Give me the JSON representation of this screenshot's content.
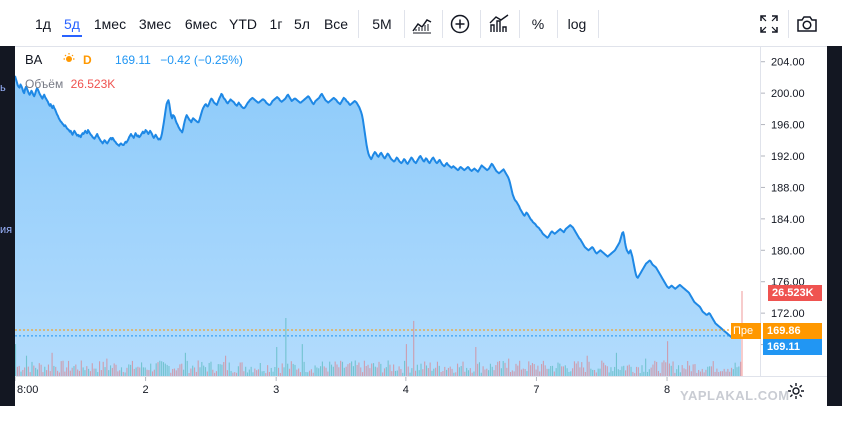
{
  "toolbar": {
    "ranges": [
      "1д",
      "5д",
      "1мес",
      "3мес",
      "6мес",
      "YTD",
      "1г",
      "5л",
      "Все"
    ],
    "active_range": "5д",
    "interval": "5M",
    "percent_label": "%",
    "log_label": "log"
  },
  "left_edge": {
    "top_fragment": "ь",
    "mid_fragment": "ия"
  },
  "legend": {
    "symbol": "BA",
    "interval_badge": "D",
    "last": "169.11",
    "change": "−0.42 (−0.25%)",
    "volume_label": "Объём",
    "volume_value": "26.523K"
  },
  "price_tags": {
    "volume": "26.523K",
    "pre_label": "Пре",
    "pre_price": "169.86",
    "last_price": "169.11"
  },
  "watermark": "YAPLAKAL.COM",
  "colors": {
    "line": "#1e88e5",
    "fill": "#9fd3fb",
    "active": "#2962ff",
    "volume_tag": "#ef5350",
    "pre_tag": "#ff9800",
    "last_tag": "#2196f3",
    "up": "#26a69a",
    "down": "#ef5350"
  },
  "chart_data": {
    "type": "area",
    "ylim": [
      164,
      206
    ],
    "y_ticks": [
      "204.00",
      "200.00",
      "196.00",
      "192.00",
      "188.00",
      "184.00",
      "180.00",
      "176.00",
      "172.00",
      "168.00"
    ],
    "x_ticks": [
      "8:00",
      "2",
      "3",
      "4",
      "7",
      "8"
    ],
    "x_tick_index": [
      0,
      143,
      286,
      428,
      571,
      714
    ],
    "series": [
      {
        "values": [
          202.2,
          201.8,
          201.4,
          201.0,
          200.8,
          200.7,
          201.1,
          200.9,
          200.6,
          200.2,
          200.0,
          200.5,
          200.8,
          200.6,
          200.3,
          200.0,
          199.8,
          200.0,
          200.3,
          200.1,
          199.8,
          199.6,
          199.9,
          200.3,
          200.6,
          200.5,
          200.2,
          199.9,
          199.7,
          199.5,
          199.3,
          199.6,
          199.8,
          199.5,
          199.3,
          199.1,
          198.9,
          198.6,
          198.4,
          198.6,
          198.3,
          198.1,
          198.4,
          198.1,
          197.9,
          197.6,
          197.3,
          197.1,
          196.8,
          196.6,
          196.4,
          196.3,
          196.1,
          196.0,
          195.8,
          195.9,
          195.7,
          195.5,
          195.4,
          195.3,
          195.1,
          195.2,
          194.9,
          194.7,
          195.0,
          195.2,
          195.0,
          194.8,
          194.6,
          194.7,
          194.5,
          194.6,
          194.4,
          194.7,
          194.9,
          194.8,
          195.0,
          195.2,
          195.0,
          194.9,
          195.3,
          195.1,
          194.9,
          194.7,
          194.6,
          194.4,
          194.3,
          194.2,
          194.4,
          194.6,
          194.8,
          194.5,
          194.3,
          194.1,
          193.9,
          193.8,
          193.6,
          193.8,
          194.0,
          193.9,
          193.7,
          193.6,
          193.8,
          194.0,
          194.2,
          194.3,
          194.1,
          194.3,
          194.1,
          193.9,
          193.8,
          193.6,
          193.5,
          193.4,
          193.3,
          193.5,
          193.6,
          193.5,
          193.4,
          193.4,
          193.6,
          193.8,
          193.7,
          193.9,
          194.1,
          194.4,
          194.6,
          194.8,
          194.6,
          194.5,
          194.3,
          194.6,
          194.9,
          194.7,
          194.5,
          194.6,
          194.4,
          194.5,
          194.7,
          194.9,
          195.1,
          194.9,
          195.0,
          195.3,
          195.2,
          195.0,
          194.8,
          195.0,
          195.2,
          195.0,
          194.8,
          194.5,
          194.3,
          194.5,
          194.7,
          194.5,
          194.3,
          194.1,
          194.2,
          194.1,
          194.4,
          194.9,
          195.6,
          196.3,
          197.1,
          197.9,
          198.6,
          198.9,
          199.1,
          198.6,
          197.8,
          197.1,
          196.8,
          197.2,
          197.1,
          196.9,
          196.5,
          196.2,
          196.0,
          195.7,
          195.5,
          195.3,
          195.2,
          195.0,
          195.4,
          196.0,
          196.5,
          196.9,
          197.2,
          197.0,
          196.8,
          196.6,
          196.5,
          196.3,
          196.6,
          196.8,
          196.7,
          196.6,
          196.5,
          196.4,
          196.3,
          196.3,
          196.6,
          197.0,
          197.4,
          197.8,
          198.1,
          198.3,
          198.5,
          198.6,
          198.4,
          198.3,
          198.5,
          198.8,
          199.1,
          199.3,
          199.2,
          199.0,
          198.8,
          198.7,
          198.6,
          198.5,
          198.8,
          199.1,
          199.4,
          199.6,
          199.9,
          199.8,
          199.5,
          199.3,
          199.2,
          199.0,
          198.8,
          198.7,
          198.9,
          199.0,
          199.2,
          199.1,
          199.0,
          198.9,
          198.8,
          198.6,
          198.5,
          198.4,
          198.6,
          198.8,
          198.6,
          198.5,
          198.3,
          198.2,
          198.1,
          198.1,
          198.2,
          198.4,
          198.6,
          198.8,
          198.9,
          199.1,
          199.2,
          199.3,
          199.4,
          199.3,
          199.2,
          199.1,
          199.0,
          198.9,
          198.8,
          198.8,
          198.9,
          199.0,
          199.1,
          199.2,
          199.2,
          199.1,
          199.0,
          198.8,
          198.7,
          198.6,
          198.5,
          198.5,
          198.6,
          198.8,
          199.0,
          199.1,
          199.2,
          199.3,
          199.4,
          199.5,
          199.4,
          199.3,
          199.1,
          199.0,
          198.9,
          199.0,
          199.1,
          199.2,
          199.3,
          199.5,
          199.7,
          199.8,
          199.6,
          199.4,
          199.2,
          199.0,
          199.1,
          199.2,
          199.3,
          199.3,
          199.2,
          199.1,
          199.0,
          198.9,
          198.8,
          198.8,
          198.9,
          199.0,
          199.1,
          199.2,
          199.3,
          199.4,
          199.5,
          199.6,
          199.5,
          199.3,
          199.1,
          198.9,
          198.7,
          198.6,
          198.8,
          199.0,
          199.1,
          199.2,
          199.3,
          199.4,
          199.6,
          199.8,
          199.9,
          199.7,
          199.5,
          199.3,
          199.1,
          199.0,
          198.9,
          198.8,
          198.9,
          199.0,
          199.1,
          199.2,
          199.3,
          199.4,
          199.3,
          199.2,
          199.1,
          198.9,
          198.8,
          198.7,
          198.6,
          198.8,
          199.0,
          199.2,
          199.4,
          199.3,
          199.2,
          199.0,
          198.9,
          198.8,
          198.6,
          198.5,
          198.6,
          198.7,
          198.8,
          198.9,
          199.0,
          198.9,
          198.8,
          198.6,
          198.4,
          198.2,
          197.9,
          197.6,
          197.2,
          196.6,
          195.8,
          195.0,
          194.2,
          193.4,
          192.8,
          192.3,
          192.0,
          191.8,
          191.6,
          191.8,
          192.1,
          192.3,
          192.5,
          192.4,
          192.2,
          192.0,
          191.9,
          192.1,
          192.3,
          192.4,
          192.2,
          192.0,
          191.8,
          191.7,
          191.9,
          192.1,
          192.3,
          192.2,
          192.0,
          191.8,
          191.6,
          191.5,
          191.4,
          191.3,
          191.4,
          191.6,
          191.8,
          191.7,
          191.5,
          191.3,
          191.2,
          191.1,
          191.2,
          191.4,
          191.6,
          191.5,
          191.3,
          191.1,
          191.0,
          191.2,
          191.4,
          191.6,
          191.8,
          191.7,
          191.5,
          191.3,
          191.2,
          191.1,
          191.3,
          191.5,
          191.7,
          191.9,
          192.0,
          191.8,
          191.6,
          191.4,
          191.3,
          191.5,
          191.7,
          191.6,
          191.4,
          191.2,
          191.1,
          191.3,
          191.5,
          191.7,
          191.8,
          191.6,
          191.4,
          191.2,
          191.1,
          191.2,
          191.4,
          191.5,
          191.3,
          191.1,
          190.9,
          190.8,
          190.7,
          190.8,
          191.0,
          191.1,
          190.9,
          190.8,
          190.7,
          190.6,
          190.5,
          190.6,
          190.7,
          190.6,
          190.5,
          190.4,
          190.3,
          190.2,
          190.3,
          190.5,
          190.6,
          190.5,
          190.4,
          190.3,
          190.2,
          190.3,
          190.4,
          190.5,
          190.6,
          190.5,
          190.3,
          190.2,
          190.1,
          190.2,
          190.3,
          190.4,
          190.3,
          190.2,
          190.1,
          190.0,
          190.2,
          190.4,
          190.6,
          190.8,
          190.7,
          190.6,
          190.5,
          190.4,
          190.3,
          190.2,
          190.3,
          190.4,
          190.6,
          190.8,
          191.0,
          190.9,
          190.7,
          190.5,
          190.3,
          190.1,
          190.0,
          189.9,
          189.8,
          189.9,
          190.0,
          190.1,
          190.2,
          190.3,
          190.1,
          189.9,
          189.7,
          189.5,
          189.3,
          189.0,
          188.6,
          188.1,
          187.6,
          187.1,
          186.8,
          186.5,
          186.3,
          186.2,
          186.0,
          185.8,
          185.6,
          185.3,
          185.1,
          184.9,
          184.7,
          184.5,
          184.4,
          184.6,
          184.8,
          184.7,
          184.5,
          184.3,
          184.1,
          183.9,
          183.8,
          183.6,
          183.5,
          183.4,
          183.3,
          183.1,
          183.0,
          182.9,
          182.8,
          182.6,
          182.5,
          182.3,
          182.1,
          182.0,
          181.9,
          181.8,
          181.7,
          181.6,
          181.7,
          181.9,
          182.1,
          182.3,
          182.4,
          182.3,
          182.2,
          182.1,
          182.2,
          182.3,
          182.4,
          182.5,
          182.6,
          182.7,
          182.6,
          182.5,
          182.4,
          182.3,
          182.5,
          182.7,
          182.8,
          182.9,
          183.0,
          183.1,
          183.2,
          183.1,
          183.0,
          182.9,
          182.7,
          182.5,
          182.3,
          182.1,
          181.9,
          181.7,
          181.5,
          181.4,
          181.2,
          181.0,
          180.8,
          180.6,
          180.4,
          180.3,
          180.2,
          180.1,
          180.0,
          180.1,
          180.2,
          180.3,
          180.4,
          180.3,
          180.1,
          179.9,
          179.7,
          179.6,
          179.7,
          179.8,
          179.9,
          180.0,
          179.9,
          179.8,
          179.7,
          179.6,
          179.5,
          179.4,
          179.3,
          179.2,
          179.3,
          179.4,
          179.5,
          179.6,
          179.7,
          179.8,
          179.9,
          180.0,
          180.2,
          180.4,
          180.6,
          180.8,
          181.0,
          181.4,
          181.8,
          182.2,
          182.3,
          181.8,
          181.0,
          180.4,
          180.0,
          179.8,
          179.6,
          179.8,
          180.0,
          179.6,
          179.2,
          178.6,
          178.0,
          177.4,
          176.9,
          176.6,
          176.5,
          176.7,
          176.9,
          177.1,
          177.3,
          177.5,
          177.7,
          177.9,
          178.1,
          178.3,
          178.4,
          178.5,
          178.6,
          178.7,
          178.6,
          178.4,
          178.2,
          178.1,
          178.0,
          177.9,
          177.8,
          177.6,
          177.4,
          177.2,
          177.0,
          176.8,
          176.6,
          176.4,
          176.2,
          176.0,
          175.8,
          175.6,
          175.4,
          175.3,
          175.2,
          175.3,
          175.4,
          175.5,
          175.4,
          175.3,
          175.2,
          175.1,
          175.2,
          175.3,
          175.4,
          175.5,
          175.6,
          175.5,
          175.4,
          175.3,
          175.2,
          175.1,
          175.0,
          174.9,
          174.8,
          174.7,
          174.6,
          174.4,
          174.2,
          174.0,
          173.8,
          173.6,
          173.4,
          173.3,
          173.2,
          173.1,
          173.0,
          172.9,
          172.8,
          172.6,
          172.4,
          172.2,
          172.1,
          172.0,
          171.9,
          171.8,
          171.8,
          171.9,
          172.0,
          171.9,
          171.7,
          171.5,
          171.3,
          171.1,
          170.9,
          170.7,
          170.6,
          170.5,
          170.4,
          170.3,
          170.2,
          170.1,
          170.0,
          169.9,
          169.8,
          169.7,
          169.6,
          169.5,
          169.4,
          169.3,
          169.2,
          169.1,
          169.0,
          168.9,
          169.0,
          169.1,
          169.2,
          169.3,
          169.4,
          169.5,
          169.6,
          169.4,
          169.2,
          169.11
        ]
      }
    ],
    "volume": {
      "spike_index": [
        0,
        12,
        40,
        73,
        100,
        143,
        159,
        186,
        230,
        286,
        296,
        314,
        347,
        389,
        428,
        436,
        473,
        504,
        540,
        571,
        583,
        626,
        658,
        690,
        714,
        725
      ],
      "spike_height": [
        0.55,
        0.35,
        0.4,
        0.45,
        0.3,
        0.55,
        0.8,
        0.4,
        0.35,
        0.5,
        1.0,
        0.55,
        0.3,
        0.4,
        0.55,
        0.95,
        0.35,
        0.5,
        0.3,
        0.45,
        0.85,
        0.35,
        0.4,
        0.3,
        0.6,
        0.95
      ]
    }
  }
}
